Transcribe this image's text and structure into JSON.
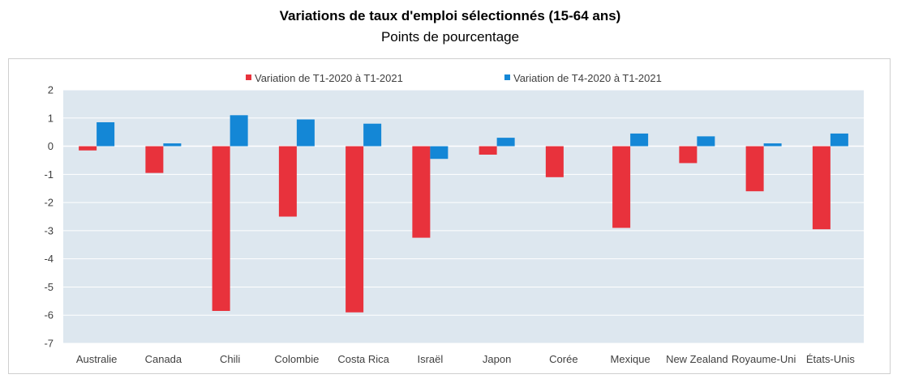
{
  "chart_data": {
    "type": "bar",
    "title": "Variations de taux d'emploi sélectionnés (15-64 ans)",
    "subtitle": "Points de pourcentage",
    "xlabel": "",
    "ylabel": "",
    "ylim": [
      -7,
      2
    ],
    "yticks": [
      2,
      1,
      0,
      -1,
      -2,
      -3,
      -4,
      -5,
      -6,
      -7
    ],
    "grid": true,
    "legend_position": "top",
    "plot_background": "#dde7ef",
    "categories": [
      "Australie",
      "Canada",
      "Chili",
      "Colombie",
      "Costa Rica",
      "Israël",
      "Japon",
      "Corée",
      "Mexique",
      "New Zealand",
      "Royaume-Uni",
      "États-Unis"
    ],
    "series": [
      {
        "name": "Variation de T1-2020 à T1-2021",
        "color": "#e8323c",
        "values": [
          -0.15,
          -0.95,
          -5.85,
          -2.5,
          -5.9,
          -3.25,
          -0.3,
          -1.1,
          -2.9,
          -0.6,
          -1.6,
          -2.95
        ]
      },
      {
        "name": "Variation de T4-2020 à T1-2021",
        "color": "#1487d6",
        "values": [
          0.85,
          0.1,
          1.1,
          0.95,
          0.8,
          -0.45,
          0.3,
          0.0,
          0.45,
          0.35,
          0.1,
          0.45
        ]
      }
    ]
  }
}
